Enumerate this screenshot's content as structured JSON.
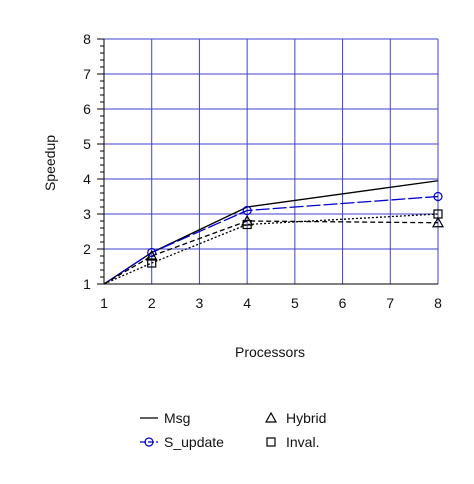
{
  "chart_data": {
    "type": "line",
    "title": "",
    "xlabel": "Processors",
    "ylabel": "Speedup",
    "x_ticks": [
      "1",
      "2",
      "3",
      "4",
      "5",
      "6",
      "7",
      "8"
    ],
    "y_ticks": [
      "1",
      "2",
      "3",
      "4",
      "5",
      "6",
      "7",
      "8"
    ],
    "xlim": [
      1,
      8
    ],
    "ylim": [
      1,
      8
    ],
    "grid": true,
    "grid_color": "#4040d0",
    "legend_position": "bottom",
    "series": [
      {
        "name": "Msg",
        "x": [
          1,
          2,
          4,
          8
        ],
        "y": [
          1.0,
          1.9,
          3.2,
          3.95
        ],
        "color": "#000000",
        "dash": "solid",
        "marker": "none"
      },
      {
        "name": "S_update",
        "x": [
          1,
          2,
          4,
          8
        ],
        "y": [
          1.0,
          1.9,
          3.1,
          3.5
        ],
        "color": "#0000cc",
        "dash": "long-dash",
        "marker": "circle"
      },
      {
        "name": "Hybrid",
        "x": [
          1,
          2,
          4,
          8
        ],
        "y": [
          1.0,
          1.8,
          2.8,
          2.75
        ],
        "color": "#000000",
        "dash": "short-dash",
        "marker": "triangle"
      },
      {
        "name": "Inval.",
        "x": [
          1,
          2,
          4,
          8
        ],
        "y": [
          1.0,
          1.6,
          2.7,
          3.0
        ],
        "color": "#000000",
        "dash": "dotted",
        "marker": "square"
      }
    ]
  }
}
